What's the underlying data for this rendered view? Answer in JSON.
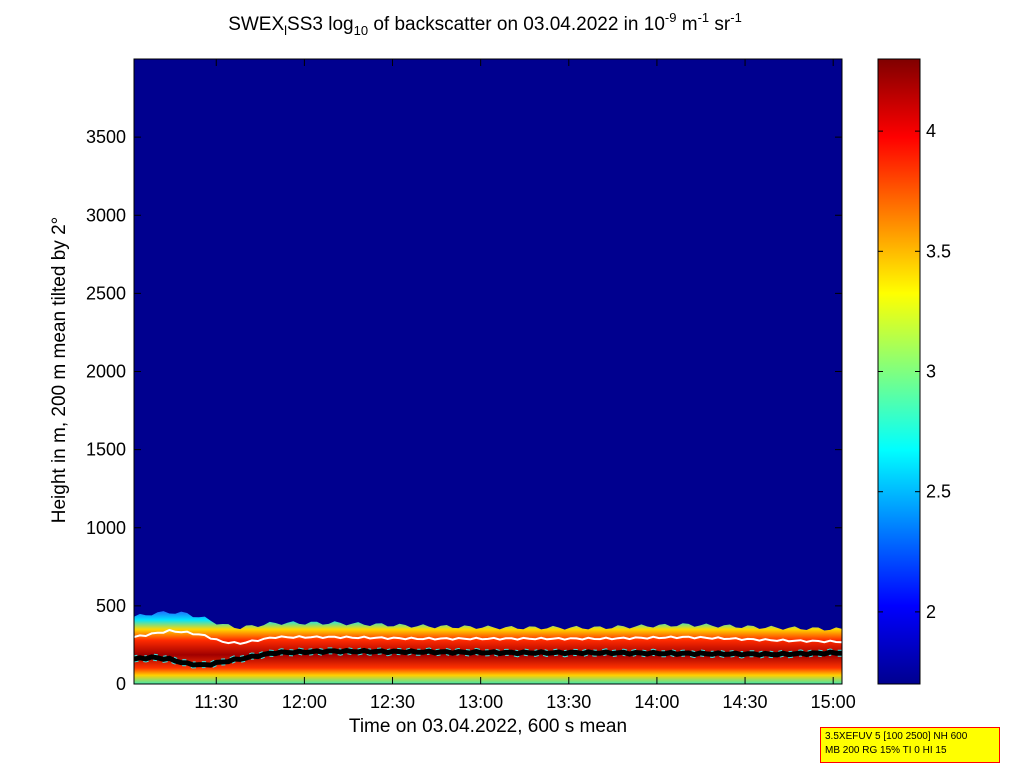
{
  "chart_data": {
    "type": "heatmap",
    "title": {
      "prefix": "SWEX",
      "sub1": "l",
      "mid1": "SS3 log",
      "sub2": "10",
      "mid2": " of backscatter on 03.04.2022 in 10",
      "sup1": "-9",
      "mid3": " m",
      "sup2": "-1",
      "mid4": " sr",
      "sup3": "-1"
    },
    "xlabel": "Time on 03.04.2022, 600 s mean",
    "ylabel": "Height in m, 200 m mean tilted by 2°",
    "x_ticks": [
      "11:30",
      "12:00",
      "12:30",
      "13:00",
      "13:30",
      "14:00",
      "14:30",
      "15:00"
    ],
    "x_tick_minutes": [
      690,
      720,
      750,
      780,
      810,
      840,
      870,
      900
    ],
    "xlim_minutes": [
      662,
      903
    ],
    "y_ticks": [
      0,
      500,
      1000,
      1500,
      2000,
      2500,
      3000,
      3500
    ],
    "ylim": [
      0,
      4000
    ],
    "colorbar": {
      "ticks": [
        2,
        2.5,
        3,
        3.5,
        4
      ],
      "range": [
        1.7,
        4.3
      ],
      "colormap": "jet"
    },
    "layer_top_m": [
      [
        662,
        430
      ],
      [
        668,
        450
      ],
      [
        674,
        460
      ],
      [
        680,
        450
      ],
      [
        686,
        420
      ],
      [
        692,
        380
      ],
      [
        698,
        360
      ],
      [
        710,
        390
      ],
      [
        730,
        390
      ],
      [
        760,
        370
      ],
      [
        790,
        360
      ],
      [
        820,
        360
      ],
      [
        850,
        380
      ],
      [
        880,
        360
      ],
      [
        903,
        350
      ]
    ],
    "white_line_m": [
      [
        662,
        300
      ],
      [
        668,
        320
      ],
      [
        674,
        340
      ],
      [
        680,
        330
      ],
      [
        686,
        310
      ],
      [
        692,
        270
      ],
      [
        698,
        260
      ],
      [
        710,
        300
      ],
      [
        730,
        300
      ],
      [
        760,
        290
      ],
      [
        790,
        290
      ],
      [
        820,
        290
      ],
      [
        850,
        300
      ],
      [
        880,
        280
      ],
      [
        903,
        270
      ]
    ],
    "black_line_m": [
      [
        662,
        160
      ],
      [
        668,
        170
      ],
      [
        674,
        160
      ],
      [
        680,
        130
      ],
      [
        686,
        120
      ],
      [
        692,
        140
      ],
      [
        698,
        160
      ],
      [
        710,
        200
      ],
      [
        730,
        210
      ],
      [
        760,
        205
      ],
      [
        790,
        200
      ],
      [
        820,
        200
      ],
      [
        850,
        195
      ],
      [
        880,
        190
      ],
      [
        903,
        200
      ]
    ],
    "colors": {
      "background": "#00008f",
      "white_line": "#ffffff",
      "black_line": "#000000",
      "cyan_markers": "#40e0e0"
    }
  },
  "info_box": {
    "line1": "3.5XEFUV 5 [100 2500] NH 600",
    "line2": "MB 200 RG 15% TI 0 HI 15"
  }
}
